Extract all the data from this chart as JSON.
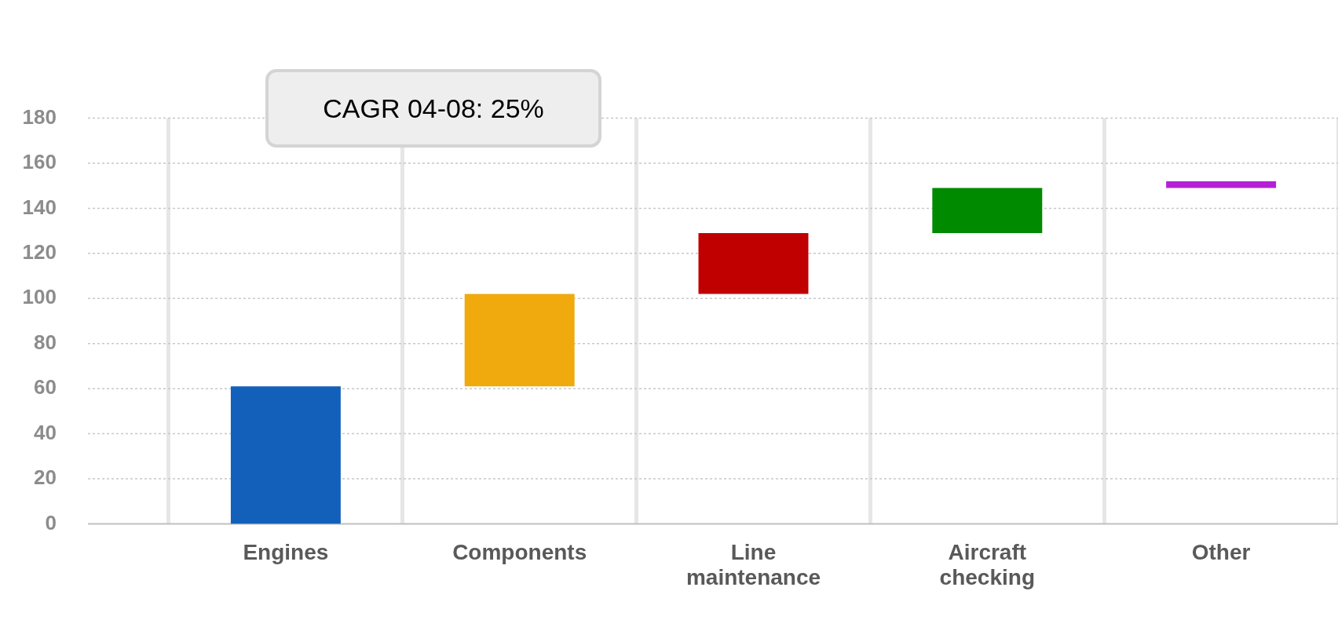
{
  "chart_data": {
    "type": "bar",
    "categories": [
      "Engines",
      "Components",
      "Line maintenance",
      "Aircraft checking",
      "Other"
    ],
    "values": [
      61,
      41,
      27,
      20,
      3
    ],
    "base": [
      0,
      61,
      102,
      129,
      149
    ],
    "colors": [
      "#1360bb",
      "#f0aa0e",
      "#c00000",
      "#008a00",
      "#b520d6"
    ],
    "ylim": [
      0,
      180
    ],
    "yticks": [
      0,
      20,
      40,
      60,
      80,
      100,
      120,
      140,
      160,
      180
    ],
    "grid": true,
    "annotations": [
      "CAGR 04-08: 25%"
    ]
  }
}
